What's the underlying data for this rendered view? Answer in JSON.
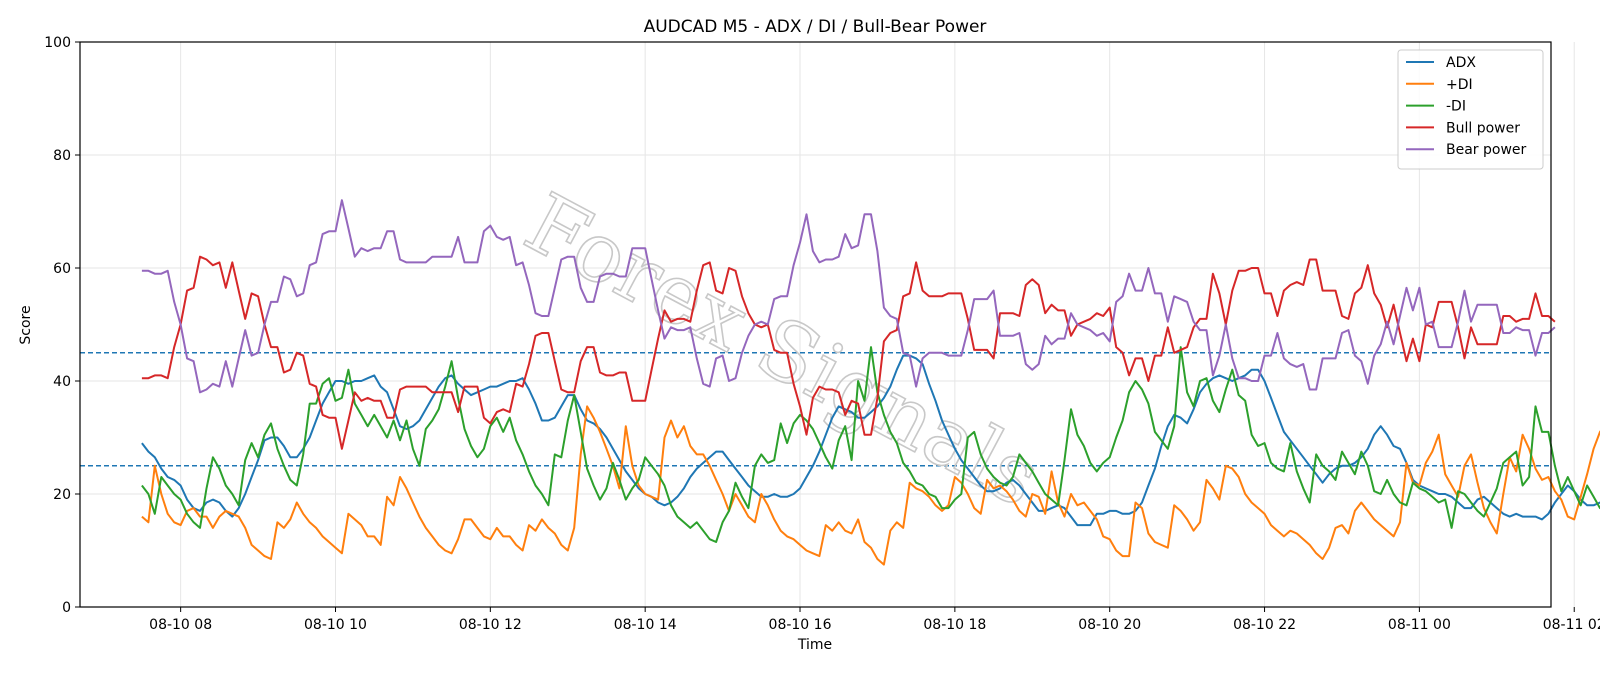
{
  "watermark": "Forex Signals",
  "chart_data": {
    "type": "line",
    "title": "AUDCAD M5 - ADX / DI / Bull-Bear Power",
    "xlabel": "Time",
    "ylabel": "Score",
    "ylim": [
      0,
      100
    ],
    "yticks": [
      0,
      20,
      40,
      60,
      80,
      100
    ],
    "x_ticks": [
      "08-10 08",
      "08-10 10",
      "08-10 12",
      "08-10 14",
      "08-10 16",
      "08-10 18",
      "08-10 20",
      "08-10 22",
      "08-11 00",
      "08-11 02"
    ],
    "x_start": "08-10 07:30",
    "x_step_minutes": 5,
    "x_range_hours": [
      -0.8,
      18.2
    ],
    "hlines": [
      {
        "y": 45,
        "color": "#1f77b4",
        "style": "dashed"
      },
      {
        "y": 25,
        "color": "#1f77b4",
        "style": "dashed"
      }
    ],
    "grid": true,
    "legend_position": "upper right",
    "series": [
      {
        "name": "ADX",
        "color": "#1f77b4",
        "values": [
          29,
          27.5,
          26.5,
          24.5,
          23,
          22.5,
          21.5,
          19,
          17.5,
          17,
          18.5,
          19,
          18.5,
          17,
          16,
          17.5,
          20,
          23,
          26,
          29.5,
          30,
          30,
          28.5,
          26.5,
          26.5,
          28,
          30,
          33,
          36,
          38,
          40,
          40,
          39.5,
          40,
          40,
          40.5,
          41,
          39,
          38,
          35,
          32,
          31.5,
          32,
          33,
          35,
          37,
          39,
          40.5,
          41,
          39.5,
          38.5,
          37.5,
          38,
          38.5,
          39,
          39,
          39.5,
          40,
          40,
          40.5,
          38.5,
          36,
          33,
          33,
          33.5,
          35.5,
          37.5,
          37.5,
          35,
          33,
          32.5,
          31.5,
          30,
          28,
          26,
          24,
          22.5,
          21,
          20,
          19.5,
          18.5,
          18,
          18.5,
          19.5,
          21,
          23,
          24.5,
          25.5,
          26.5,
          27.5,
          27.5,
          26,
          24.5,
          23,
          21.5,
          20.5,
          19.5,
          19.5,
          20,
          19.5,
          19.5,
          20,
          21,
          23,
          25,
          27.5,
          30.5,
          33.5,
          35.5,
          35,
          34.5,
          33.5,
          33.5,
          34.5,
          35.5,
          37,
          39,
          42,
          44.5,
          44.5,
          44,
          43,
          39.5,
          36.5,
          33,
          30.5,
          28,
          26,
          24.5,
          23,
          21.5,
          20.5,
          20.5,
          21,
          22,
          22.5,
          21.5,
          20,
          18.5,
          17,
          17,
          17.5,
          18,
          17.5,
          16,
          14.5,
          14.5,
          14.5,
          16.5,
          16.5,
          17,
          17,
          16.5,
          16.5,
          17,
          18.5,
          21.5,
          24.5,
          28.5,
          32,
          34,
          33.5,
          32.5,
          35,
          38,
          39.5,
          40.5,
          41,
          40.5,
          40,
          40.5,
          41,
          42,
          42,
          40,
          37,
          34,
          31,
          29.5,
          28,
          26.5,
          25,
          23.5,
          22,
          23.5,
          24.5,
          25,
          25,
          25.5,
          26.5,
          28,
          30.5,
          32,
          30.5,
          28.5,
          28,
          25.5,
          22.5,
          21.5,
          21,
          20.5,
          20,
          20,
          19.5,
          18.5,
          17.5,
          17.5,
          19,
          19.5,
          18.5,
          17.5,
          16.5,
          16,
          16.5,
          16,
          16,
          16,
          15.5,
          16.5,
          18.5,
          20,
          21.5,
          20.5,
          19,
          18,
          18,
          18.5,
          17.5,
          16,
          15.5,
          15.5,
          14,
          13,
          14.5,
          15.5,
          15.5,
          16,
          17.5,
          20,
          23.5,
          27.5,
          28,
          28,
          27.5
        ]
      },
      {
        "name": "+DI",
        "color": "#ff7f0e",
        "values": [
          16,
          15,
          25,
          20,
          16.5,
          15,
          14.5,
          17,
          17.5,
          16,
          16,
          14,
          16,
          17,
          16.5,
          16,
          14,
          11,
          10,
          9,
          8.5,
          15,
          14,
          15.5,
          18.5,
          16.5,
          15,
          14,
          12.5,
          11.5,
          10.5,
          9.5,
          16.5,
          15.5,
          14.5,
          12.5,
          12.5,
          11,
          19.5,
          18,
          23,
          21,
          18.5,
          16,
          14,
          12.5,
          11,
          10,
          9.5,
          12,
          15.5,
          15.5,
          14,
          12.5,
          12,
          14,
          12.5,
          12.5,
          11,
          10,
          14.5,
          13.5,
          15.5,
          14,
          13,
          11,
          10,
          14,
          27,
          35.5,
          33.5,
          31,
          28,
          25,
          21,
          32,
          25,
          21.5,
          20,
          19.5,
          19,
          30,
          33,
          30,
          32,
          28.5,
          27,
          27,
          25,
          22.5,
          20,
          17,
          20,
          18,
          16,
          15,
          20,
          18,
          15.5,
          13.5,
          12.5,
          12,
          11,
          10,
          9.5,
          9,
          14.5,
          13.5,
          15,
          13.5,
          13,
          15.5,
          11.5,
          10.5,
          8.5,
          7.5,
          13.5,
          15,
          14,
          22,
          21,
          20.5,
          19.5,
          18,
          17,
          18,
          23,
          22,
          20,
          17.5,
          16.5,
          22.5,
          21,
          21.5,
          20.5,
          19,
          17,
          16,
          20,
          19.5,
          16.5,
          24,
          18.5,
          16,
          20,
          18,
          18.5,
          17,
          15.5,
          12.5,
          12,
          10,
          9,
          9,
          18.5,
          17.5,
          13,
          11.5,
          11,
          10.5,
          18,
          17,
          15.5,
          13.5,
          15,
          22.5,
          21,
          19,
          25,
          24.5,
          23,
          20,
          18.5,
          17.5,
          16.5,
          14.5,
          13.5,
          12.5,
          13.5,
          13,
          12,
          11,
          9.5,
          8.5,
          10.5,
          14,
          14.5,
          13,
          17,
          18.5,
          17,
          15.5,
          14.5,
          13.5,
          12.5,
          15,
          25.5,
          22,
          21.5,
          25.5,
          27.5,
          30.5,
          23.5,
          21.5,
          19.5,
          25,
          27,
          22,
          17.5,
          15,
          13,
          20,
          26.5,
          24,
          30.5,
          28,
          24.5,
          22.5,
          23,
          20.5,
          19,
          16,
          15.5,
          19.5,
          23.5,
          28,
          31,
          32.5,
          31.5,
          37.5,
          35,
          31.5,
          30.5
        ]
      },
      {
        "name": "-DI",
        "color": "#2ca02c",
        "values": [
          21.5,
          20,
          16.5,
          23,
          21.5,
          20,
          19,
          16.5,
          15,
          14,
          21,
          26.5,
          24.5,
          21.5,
          20,
          18,
          26,
          29,
          26.5,
          30.5,
          32.5,
          28,
          25,
          22.5,
          21.5,
          27,
          36,
          36,
          39.5,
          40.5,
          36.5,
          37,
          42,
          36,
          34,
          32,
          34,
          32,
          30,
          33,
          29.5,
          33,
          28,
          25,
          31.5,
          33,
          35,
          39,
          43.5,
          37,
          31.5,
          28.5,
          26.5,
          28,
          32,
          33.5,
          31,
          33.5,
          29.5,
          27,
          24,
          21.5,
          20,
          18,
          27,
          26.5,
          33,
          37.5,
          31,
          24.5,
          21.5,
          19,
          21,
          25.5,
          22.5,
          19,
          21,
          22.5,
          26.5,
          25,
          23.5,
          21.5,
          18,
          16,
          15,
          14,
          15,
          13.5,
          12,
          11.5,
          15,
          17,
          22,
          19.5,
          17.5,
          25,
          27,
          25.5,
          26,
          32.5,
          29,
          32.5,
          34,
          33,
          31.5,
          29,
          26.5,
          24.5,
          29.5,
          32,
          26,
          40,
          36.5,
          46,
          38,
          34,
          31,
          29,
          25.5,
          24,
          22,
          21.5,
          20,
          19.5,
          17.5,
          17.5,
          19,
          20,
          30,
          31,
          27,
          24.5,
          23,
          22,
          21.5,
          23,
          27,
          25.5,
          24,
          22,
          20,
          19,
          18,
          26,
          35,
          30.5,
          28.5,
          25.5,
          24,
          25.5,
          26.5,
          30,
          33,
          38,
          40,
          38.5,
          36,
          31,
          29.5,
          28,
          32,
          46,
          38,
          35.5,
          40,
          40.5,
          36.5,
          34.5,
          38.5,
          42,
          37.5,
          36.5,
          30.5,
          28.5,
          29,
          25.5,
          24.5,
          24,
          29,
          24,
          21,
          18.5,
          27,
          25,
          24,
          22.5,
          27.5,
          25.5,
          23.5,
          27.5,
          25,
          20.5,
          20,
          22.5,
          20,
          18.5,
          18,
          22,
          21,
          20.5,
          19.5,
          18.5,
          19,
          14,
          20.5,
          20,
          18.5,
          17,
          16,
          18.5,
          21,
          25.5,
          26.5,
          27.5,
          21.5,
          23,
          35.5,
          31,
          31,
          25,
          20.5,
          23,
          20.5,
          18,
          21.5,
          19.5,
          17.5,
          17.5,
          20.5,
          19,
          18.5,
          29,
          26,
          23,
          20,
          16.5,
          14.5,
          13.5,
          11.5,
          10.5,
          16,
          18.5
        ]
      },
      {
        "name": "Bull power",
        "color": "#d62728",
        "values": [
          40.5,
          40.5,
          41,
          41,
          40.5,
          46,
          50,
          56,
          56.5,
          62,
          61.5,
          60.5,
          61,
          56.5,
          61,
          56,
          51,
          55.5,
          55,
          50,
          46,
          46,
          41.5,
          42,
          45,
          44.5,
          39.5,
          39,
          34,
          33.5,
          33.5,
          28,
          33,
          38,
          36.5,
          37,
          36.5,
          36.5,
          33.5,
          33.5,
          38.5,
          39,
          39,
          39,
          39,
          38,
          38,
          38,
          38,
          34.5,
          39,
          39,
          39,
          33.5,
          32.5,
          34.5,
          35,
          34.5,
          39.5,
          39,
          43,
          48,
          48.5,
          48.5,
          43.5,
          38.5,
          38,
          38,
          43.5,
          46,
          46,
          41.5,
          41,
          41,
          41.5,
          41.5,
          36.5,
          36.5,
          36.5,
          42,
          47.5,
          52.5,
          50.5,
          51,
          51,
          50.5,
          56,
          60.5,
          61,
          56,
          55.5,
          60,
          59.5,
          55,
          52,
          50,
          49.5,
          50,
          45.5,
          45,
          45,
          39.5,
          35.5,
          30.5,
          37,
          39,
          38.5,
          38.5,
          38,
          34,
          36.5,
          36,
          30.5,
          30.5,
          37,
          47,
          48.5,
          49,
          55,
          55.5,
          61,
          56,
          55,
          55,
          55,
          55.5,
          55.5,
          55.5,
          51,
          45.5,
          45.5,
          45.5,
          44,
          52,
          52,
          52,
          51.5,
          57,
          58,
          57,
          52,
          53.5,
          52.5,
          52.5,
          48,
          50,
          50.5,
          51,
          52,
          51.5,
          53,
          46,
          45,
          41,
          44,
          44,
          40,
          44.5,
          44.5,
          49.5,
          45,
          45.5,
          46,
          49.5,
          51,
          51,
          59,
          55.5,
          50,
          56,
          59.5,
          59.5,
          60,
          60,
          55.5,
          55.5,
          51.5,
          56,
          57,
          57.5,
          57,
          61.5,
          61.5,
          56,
          56,
          56,
          51.5,
          51,
          55.5,
          56.5,
          60.5,
          55.5,
          53.5,
          49.5,
          53.5,
          48.5,
          43.5,
          47.5,
          43.5,
          50,
          49.5,
          54,
          54,
          54,
          49.5,
          44,
          49.5,
          46.5,
          46.5,
          46.5,
          46.5,
          51.5,
          51.5,
          50.5,
          51,
          51,
          55.5,
          51.5,
          51.5,
          50.5
        ]
      },
      {
        "name": "Bear power",
        "color": "#9467bd",
        "values": [
          59.5,
          59.5,
          59,
          59,
          59.5,
          54,
          50,
          44,
          43.5,
          38,
          38.5,
          39.5,
          39,
          43.5,
          39,
          44,
          49,
          44.5,
          45,
          50,
          54,
          54,
          58.5,
          58,
          55,
          55.5,
          60.5,
          61,
          66,
          66.5,
          66.5,
          72,
          67,
          62,
          63.5,
          63,
          63.5,
          63.5,
          66.5,
          66.5,
          61.5,
          61,
          61,
          61,
          61,
          62,
          62,
          62,
          62,
          65.5,
          61,
          61,
          61,
          66.5,
          67.5,
          65.5,
          65,
          65.5,
          60.5,
          61,
          57,
          52,
          51.5,
          51.5,
          56.5,
          61.5,
          62,
          62,
          56.5,
          54,
          54,
          58.5,
          59,
          59,
          58.5,
          58.5,
          63.5,
          63.5,
          63.5,
          58,
          52.5,
          47.5,
          49.5,
          49,
          49,
          49.5,
          44,
          39.5,
          39,
          44,
          44.5,
          40,
          40.5,
          45,
          48,
          50,
          50.5,
          50,
          54.5,
          55,
          55,
          60.5,
          64.5,
          69.5,
          63,
          61,
          61.5,
          61.5,
          62,
          66,
          63.5,
          64,
          69.5,
          69.5,
          63,
          53,
          51.5,
          51,
          45,
          44.5,
          39,
          44,
          45,
          45,
          45,
          44.5,
          44.5,
          44.5,
          49,
          54.5,
          54.5,
          54.5,
          56,
          48,
          48,
          48,
          48.5,
          43,
          42,
          43,
          48,
          46.5,
          47.5,
          47.5,
          52,
          50,
          49.5,
          49,
          48,
          48.5,
          47,
          54,
          55,
          59,
          56,
          56,
          60,
          55.5,
          55.5,
          50.5,
          55,
          54.5,
          54,
          50.5,
          49,
          49,
          41,
          44.5,
          50,
          44,
          40.5,
          40.5,
          40,
          40,
          44.5,
          44.5,
          48.5,
          44,
          43,
          42.5,
          43,
          38.5,
          38.5,
          44,
          44,
          44,
          48.5,
          49,
          44.5,
          43.5,
          39.5,
          44.5,
          46.5,
          50.5,
          46.5,
          51.5,
          56.5,
          52.5,
          56.5,
          50,
          50.5,
          46,
          46,
          46,
          50.5,
          56,
          50.5,
          53.5,
          53.5,
          53.5,
          53.5,
          48.5,
          48.5,
          49.5,
          49,
          49,
          44.5,
          48.5,
          48.5,
          49.5
        ]
      }
    ]
  }
}
